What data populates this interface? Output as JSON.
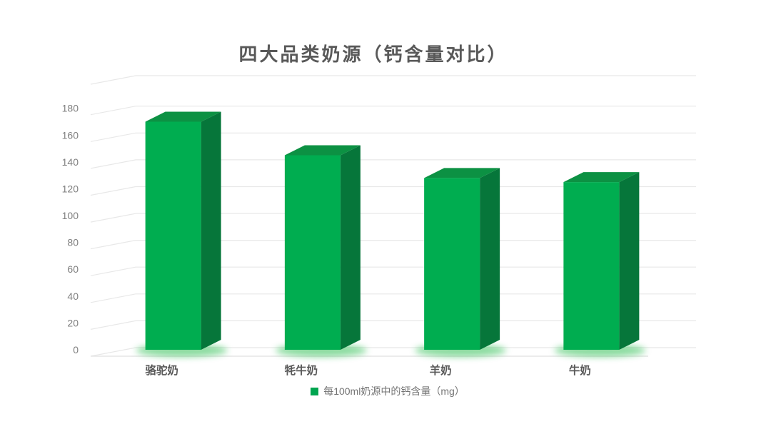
{
  "title": "四大品类奶源（钙含量对比）",
  "legend": {
    "label": "每100ml奶源中的钙含量（mg）",
    "marker_color": "#00A550"
  },
  "colors": {
    "bar_front": "#00AD50",
    "bar_side": "#06763A",
    "bar_top": "#0C9143",
    "glow": "#2FBF53",
    "grid": "#E8E8E8",
    "axis_line": "#E0E0E0",
    "tick_text": "#7F7F7F",
    "category_text": "#595959",
    "title_text": "#595959"
  },
  "chart_data": {
    "type": "bar",
    "style": "3d",
    "title": "四大品类奶源（钙含量对比）",
    "categories": [
      "骆驼奶",
      "牦牛奶",
      "羊奶",
      "牛奶"
    ],
    "series": [
      {
        "name": "每100ml奶源中的钙含量（mg）",
        "values": [
          170,
          145,
          128,
          125
        ]
      }
    ],
    "ylim": [
      0,
      180
    ],
    "ytick_interval": 20,
    "yticks": [
      0,
      20,
      40,
      60,
      80,
      100,
      120,
      140,
      160,
      180
    ],
    "xlabel": "",
    "ylabel": "",
    "grid": true,
    "legend_position": "bottom"
  }
}
